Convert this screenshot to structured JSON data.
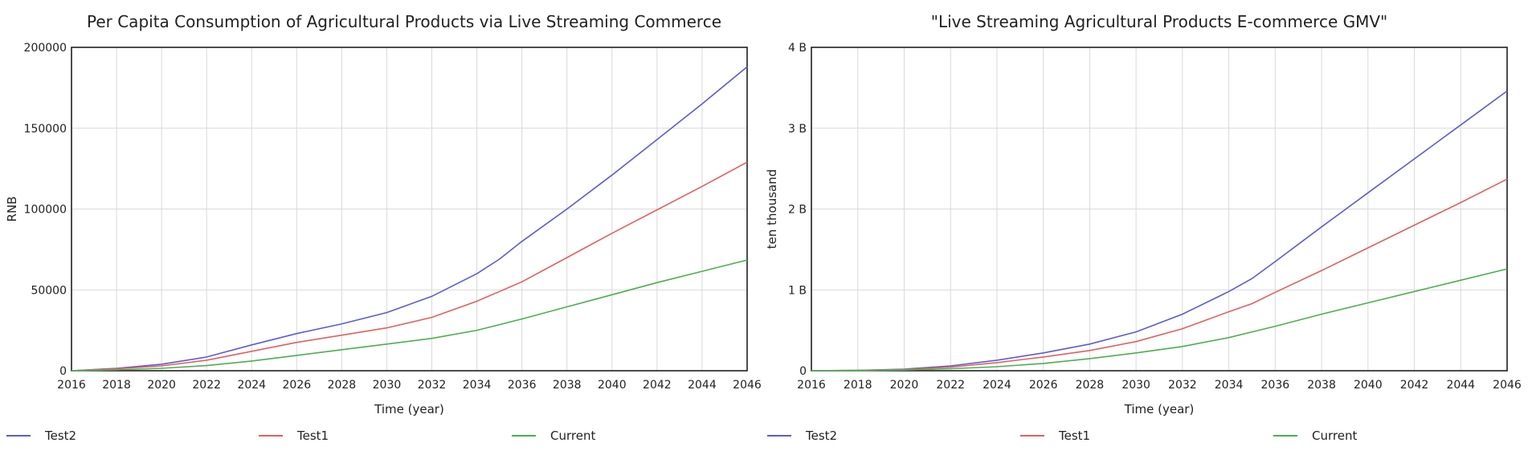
{
  "chart_data": [
    {
      "type": "line",
      "title": "Per Capita Consumption of Agricultural Products via Live Streaming Commerce",
      "xlabel": "Time (year)",
      "ylabel": "RNB",
      "xlim": [
        2016,
        2046
      ],
      "ylim": [
        0,
        200000
      ],
      "xticks": [
        "2016",
        "2018",
        "2020",
        "2022",
        "2024",
        "2026",
        "2028",
        "2030",
        "2032",
        "2034",
        "2036",
        "2038",
        "2040",
        "2042",
        "2044",
        "2046"
      ],
      "yticks": [
        {
          "value": 0,
          "label": "0"
        },
        {
          "value": 50000,
          "label": "50000"
        },
        {
          "value": 100000,
          "label": "100000"
        },
        {
          "value": 150000,
          "label": "150000"
        },
        {
          "value": 200000,
          "label": "200000"
        }
      ],
      "grid": true,
      "legend_position": "bottom",
      "x": [
        2016,
        2018,
        2020,
        2022,
        2024,
        2026,
        2028,
        2030,
        2032,
        2034,
        2035,
        2036,
        2038,
        2040,
        2042,
        2044,
        2046
      ],
      "series": [
        {
          "name": "Test2",
          "color": "#5b5bd6",
          "values": [
            0,
            1500,
            4000,
            8500,
            16000,
            23000,
            29000,
            36000,
            46000,
            60000,
            69000,
            80000,
            100000,
            121000,
            143000,
            165000,
            188000
          ]
        },
        {
          "name": "Test1",
          "color": "#e06060",
          "values": [
            0,
            1200,
            3000,
            6500,
            12000,
            17500,
            22000,
            26500,
            33000,
            43000,
            49000,
            55000,
            70000,
            85000,
            99500,
            114000,
            129000
          ]
        },
        {
          "name": "Current",
          "color": "#4caf50",
          "values": [
            0,
            500,
            1500,
            3200,
            6000,
            9500,
            13000,
            16500,
            20000,
            25000,
            28500,
            32000,
            39500,
            47000,
            54500,
            61500,
            68500
          ]
        }
      ]
    },
    {
      "type": "line",
      "title": "\"Live Streaming Agricultural Products E-commerce GMV\"",
      "xlabel": "Time (year)",
      "ylabel": "ten thousand",
      "xlim": [
        2016,
        2046
      ],
      "ylim": [
        0,
        4
      ],
      "xticks": [
        "2016",
        "2018",
        "2020",
        "2022",
        "2024",
        "2026",
        "2028",
        "2030",
        "2032",
        "2034",
        "2036",
        "2038",
        "2040",
        "2042",
        "2044",
        "2046"
      ],
      "yticks": [
        {
          "value": 0,
          "label": "0"
        },
        {
          "value": 1,
          "label": "1 B"
        },
        {
          "value": 2,
          "label": "2 B"
        },
        {
          "value": 3,
          "label": "3 B"
        },
        {
          "value": 4,
          "label": "4 B"
        }
      ],
      "grid": true,
      "legend_position": "bottom",
      "x": [
        2016,
        2018,
        2020,
        2022,
        2024,
        2026,
        2028,
        2030,
        2032,
        2034,
        2035,
        2036,
        2038,
        2040,
        2042,
        2044,
        2046
      ],
      "series": [
        {
          "name": "Test2",
          "color": "#5b5bd6",
          "values": [
            0,
            0.005,
            0.02,
            0.06,
            0.13,
            0.22,
            0.33,
            0.48,
            0.7,
            0.98,
            1.14,
            1.35,
            1.78,
            2.2,
            2.62,
            3.04,
            3.46
          ]
        },
        {
          "name": "Test1",
          "color": "#e06060",
          "values": [
            0,
            0.004,
            0.015,
            0.045,
            0.1,
            0.17,
            0.25,
            0.36,
            0.52,
            0.73,
            0.83,
            0.97,
            1.24,
            1.52,
            1.8,
            2.08,
            2.37
          ]
        },
        {
          "name": "Current",
          "color": "#4caf50",
          "values": [
            0,
            0.002,
            0.008,
            0.025,
            0.05,
            0.09,
            0.15,
            0.22,
            0.3,
            0.41,
            0.48,
            0.55,
            0.7,
            0.84,
            0.98,
            1.12,
            1.26
          ]
        }
      ]
    }
  ]
}
